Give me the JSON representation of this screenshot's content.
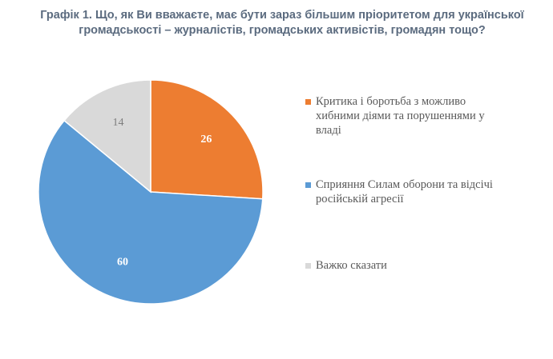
{
  "title": {
    "line1": "Графік 1. Що, як Ви вважаєте, має бути зараз більшим пріоритетом для української",
    "line2": "громадськості – журналістів, громадських активістів, громадян тощо?"
  },
  "chart_data": {
    "type": "pie",
    "title": "Графік 1. Що, як Ви вважаєте, має бути зараз більшим пріоритетом для української громадськості – журналістів, громадських активістів, громадян тощо?",
    "slices": [
      {
        "label": "Критика і боротьба з можливо хибними діями та порушеннями у владі",
        "value": 26,
        "color": "#ED7D31",
        "value_label_color": "#ffffff"
      },
      {
        "label": "Сприяння Силам оборони та відсічі російській агресії",
        "value": 60,
        "color": "#5B9BD5",
        "value_label_color": "#ffffff"
      },
      {
        "label": "Важко сказати",
        "value": 14,
        "color": "#D9D9D9",
        "value_label_color": "#7f7f7f"
      }
    ],
    "start_angle": "12 o'clock",
    "direction": "clockwise",
    "legend_position": "right"
  }
}
